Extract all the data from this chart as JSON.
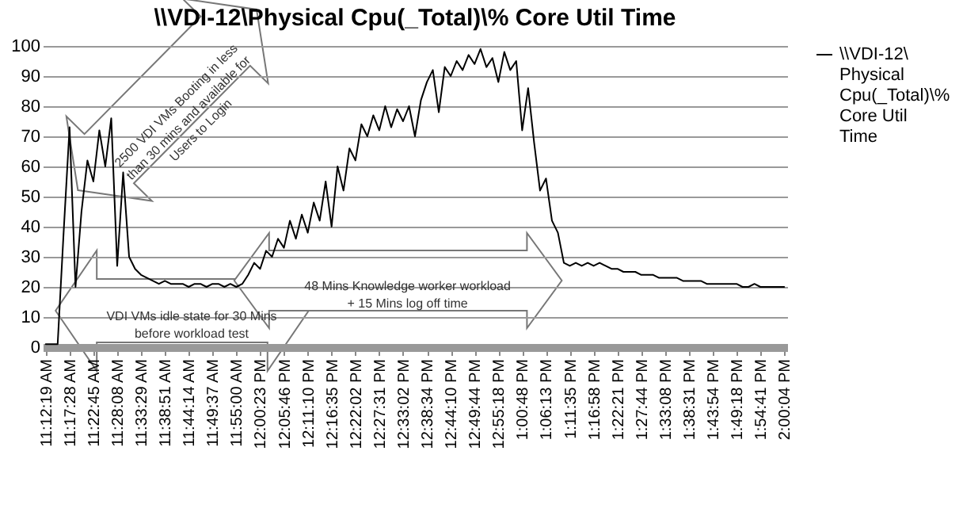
{
  "chart_data": {
    "type": "line",
    "title": "\\\\VDI-12\\Physical Cpu(_Total)\\% Core Util Time",
    "categories": [
      "11:12:19 AM",
      null,
      null,
      null,
      "11:17:28 AM",
      null,
      null,
      null,
      "11:22:45 AM",
      null,
      null,
      null,
      "11:28:08 AM",
      null,
      null,
      null,
      "11:33:29 AM",
      null,
      null,
      null,
      "11:38:51 AM",
      null,
      null,
      null,
      "11:44:14 AM",
      null,
      null,
      null,
      "11:49:37 AM",
      null,
      null,
      null,
      "11:55:00 AM",
      null,
      null,
      null,
      "12:00:23 PM",
      null,
      null,
      null,
      "12:05:46 PM",
      null,
      null,
      null,
      "12:11:10 PM",
      null,
      null,
      null,
      "12:16:35 PM",
      null,
      null,
      null,
      "12:22:02 PM",
      null,
      null,
      null,
      "12:27:31 PM",
      null,
      null,
      null,
      "12:33:02 PM",
      null,
      null,
      null,
      "12:38:34 PM",
      null,
      null,
      null,
      "12:44:10 PM",
      null,
      null,
      null,
      "12:49:44 PM",
      null,
      null,
      null,
      "12:55:18 PM",
      null,
      null,
      null,
      "1:00:48 PM",
      null,
      null,
      null,
      "1:06:13 PM",
      null,
      null,
      null,
      "1:11:35 PM",
      null,
      null,
      null,
      "1:16:58 PM",
      null,
      null,
      null,
      "1:22:21 PM",
      null,
      null,
      null,
      "1:27:44 PM",
      null,
      null,
      null,
      "1:33:08 PM",
      null,
      null,
      null,
      "1:38:31 PM",
      null,
      null,
      null,
      "1:43:54 PM",
      null,
      null,
      null,
      "1:49:18 PM",
      null,
      null,
      null,
      "1:54:41 PM",
      null,
      null,
      null,
      "2:00:04 PM"
    ],
    "series": [
      {
        "name": "\\\\VDI-12\\Physical Cpu(_Total)\\% Core Util Time",
        "color": "#000000",
        "values": [
          1,
          1,
          1,
          38,
          73,
          20,
          45,
          62,
          55,
          72,
          60,
          76,
          27,
          58,
          30,
          26,
          24,
          23,
          22,
          21,
          22,
          21,
          21,
          21,
          20,
          21,
          21,
          20,
          21,
          21,
          20,
          21,
          20,
          21,
          24,
          28,
          26,
          32,
          30,
          36,
          33,
          42,
          36,
          44,
          38,
          48,
          42,
          55,
          40,
          60,
          52,
          66,
          62,
          74,
          70,
          77,
          72,
          80,
          73,
          79,
          75,
          80,
          70,
          82,
          88,
          92,
          78,
          93,
          90,
          95,
          92,
          97,
          94,
          99,
          93,
          96,
          88,
          98,
          92,
          95,
          72,
          86,
          68,
          52,
          56,
          42,
          38,
          28,
          27,
          28,
          27,
          28,
          27,
          28,
          27,
          26,
          26,
          25,
          25,
          25,
          24,
          24,
          24,
          23,
          23,
          23,
          23,
          22,
          22,
          22,
          22,
          21,
          21,
          21,
          21,
          21,
          21,
          20,
          20,
          21,
          20,
          20,
          20,
          20,
          20
        ]
      }
    ],
    "ylim": [
      0,
      100
    ],
    "yticks": [
      0,
      10,
      20,
      30,
      40,
      50,
      60,
      70,
      80,
      90,
      100
    ],
    "grid": "y",
    "legend": "right",
    "annotations": [
      "2500 VDI VMs Booting in less than 30 mins and available for Users to Login",
      "VDI VMs idle state for 30 Mins before workload test",
      "48 Mins Knowledge worker workload + 15 Mins log off time"
    ]
  }
}
